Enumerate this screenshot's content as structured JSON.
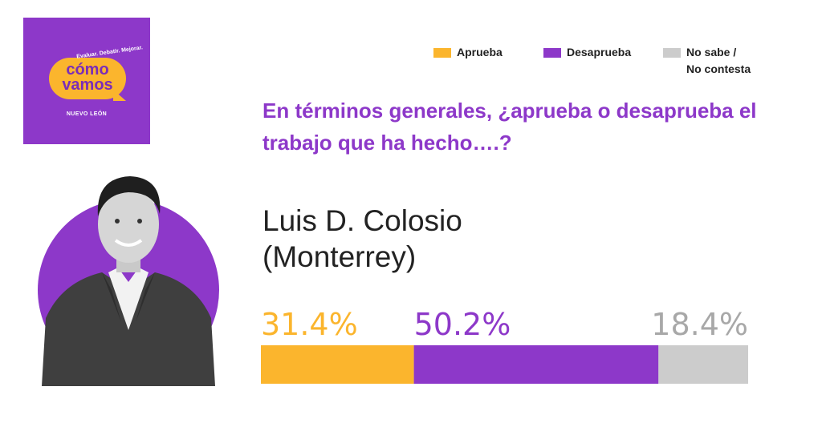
{
  "logo": {
    "tagline": "Evaluar. Debatir. Mejorar.",
    "word1": "cómo",
    "word2": "vamos",
    "city": "NUEVO LEÓN"
  },
  "legend": {
    "items": [
      {
        "label": "Aprueba",
        "color": "#fbb52d"
      },
      {
        "label": "Desaprueba",
        "color": "#8d38c9"
      },
      {
        "label_line1": "No sabe /",
        "label_line2": "No contesta",
        "color": "#cccccc"
      }
    ]
  },
  "question": "En términos generales, ¿aprueba o desaprueba el trabajo que ha hecho….?",
  "person": {
    "name": "Luis D. Colosio",
    "place": "(Monterrey)"
  },
  "chart_data": {
    "type": "bar",
    "orientation": "horizontal-stacked",
    "categories": [
      "Aprueba",
      "Desaprueba",
      "No sabe / No contesta"
    ],
    "values": [
      31.4,
      50.2,
      18.4
    ],
    "labels": [
      "31.4%",
      "50.2%",
      "18.4%"
    ],
    "colors": [
      "#fbb52d",
      "#8d38c9",
      "#cccccc"
    ],
    "label_colors": [
      "#fbb52d",
      "#8d38c9",
      "#a8a8a8"
    ],
    "xlim": [
      0,
      100
    ]
  }
}
